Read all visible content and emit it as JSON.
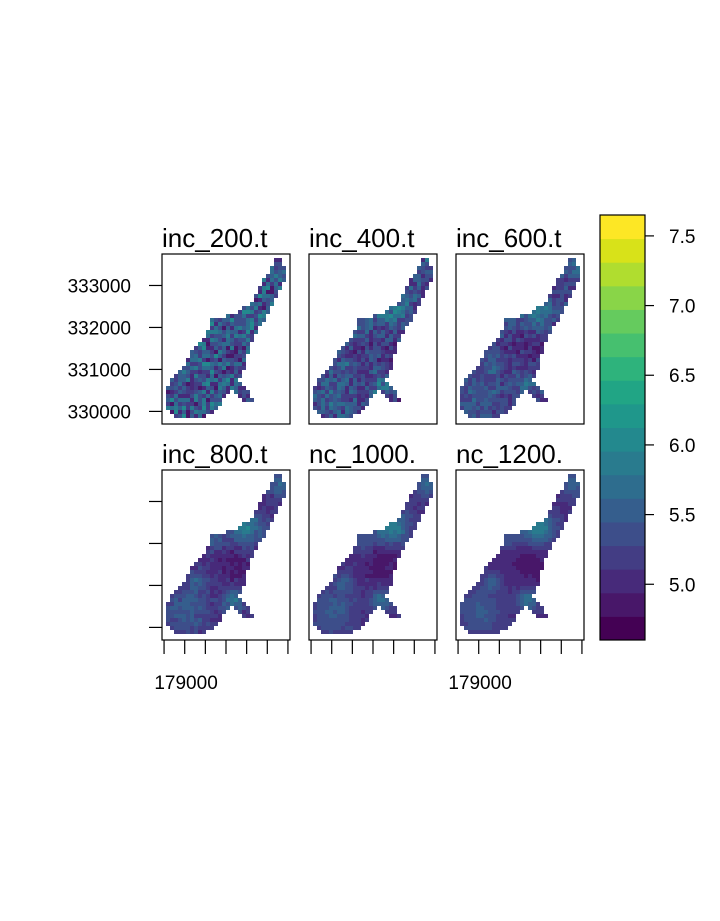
{
  "chart_data": {
    "type": "heatmap",
    "panels": [
      {
        "title": "inc_200.t",
        "smooth": 0.15
      },
      {
        "title": "inc_400.t",
        "smooth": 0.5
      },
      {
        "title": "inc_600.t",
        "smooth": 0.7
      },
      {
        "title": "inc_800.t",
        "smooth": 0.85
      },
      {
        "title": "nc_1000.",
        "smooth": 0.95
      },
      {
        "title": "nc_1200.",
        "smooth": 1.0
      }
    ],
    "y_ticks": [
      {
        "value": 330000,
        "label": "330000"
      },
      {
        "value": 331000,
        "label": "331000"
      },
      {
        "value": 332000,
        "label": "332000"
      },
      {
        "value": 333000,
        "label": "333000"
      }
    ],
    "x_ticks": [
      {
        "value": 179000,
        "label": "179000"
      },
      {
        "value": 179500,
        "label": ""
      },
      {
        "value": 180000,
        "label": ""
      },
      {
        "value": 180500,
        "label": ""
      },
      {
        "value": 181000,
        "label": ""
      },
      {
        "value": 181500,
        "label": ""
      },
      {
        "value": 182000,
        "label": ""
      }
    ],
    "xlim": [
      178950,
      182050
    ],
    "ylim": [
      329700,
      333750
    ],
    "legend": {
      "position": "right",
      "range": [
        4.6,
        7.65
      ],
      "ticks": [
        {
          "value": 5.0,
          "label": "5.0"
        },
        {
          "value": 5.5,
          "label": "5.5"
        },
        {
          "value": 6.0,
          "label": "6.0"
        },
        {
          "value": 6.5,
          "label": "6.5"
        },
        {
          "value": 7.0,
          "label": "7.0"
        },
        {
          "value": 7.5,
          "label": "7.5"
        }
      ],
      "colors": [
        "#440154",
        "#481769",
        "#472a7a",
        "#433d84",
        "#3d4e8a",
        "#355e8d",
        "#2e6d8e",
        "#297b8e",
        "#23898e",
        "#1f978b",
        "#21a585",
        "#2eb37c",
        "#46c06f",
        "#65cb5e",
        "#89d548",
        "#b0dd2f",
        "#d8e219",
        "#fde725"
      ]
    }
  }
}
